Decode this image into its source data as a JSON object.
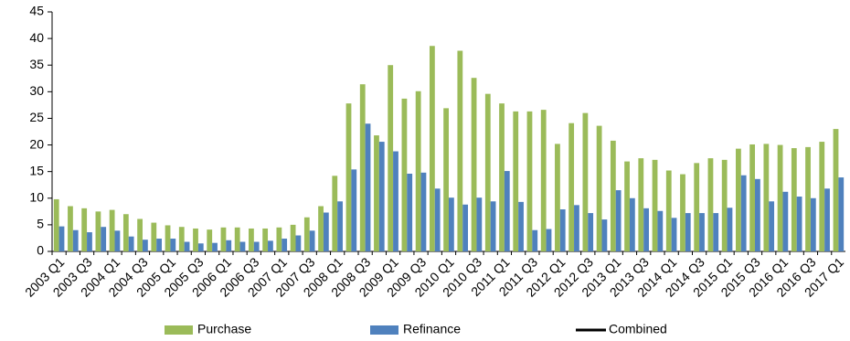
{
  "chart_data": {
    "type": "bar",
    "categories": [
      "2003 Q1",
      null,
      "2003 Q3",
      null,
      "2004 Q1",
      null,
      "2004 Q3",
      null,
      "2005 Q1",
      null,
      "2005 Q3",
      null,
      "2006 Q1",
      null,
      "2006 Q3",
      null,
      "2007 Q1",
      null,
      "2007 Q3",
      null,
      "2008 Q1",
      null,
      "2008 Q3",
      null,
      "2009 Q1",
      null,
      "2009 Q3",
      null,
      "2010 Q1",
      null,
      "2010 Q3",
      null,
      "2011 Q1",
      null,
      "2011 Q3",
      null,
      "2012 Q1",
      null,
      "2012 Q3",
      null,
      "2013 Q1",
      null,
      "2013 Q3",
      null,
      "2014 Q1",
      null,
      "2014 Q3",
      null,
      "2015 Q1",
      null,
      "2015 Q3",
      null,
      "2016 Q1",
      null,
      "2016 Q3",
      null,
      "2017 Q1"
    ],
    "series": [
      {
        "name": "Purchase",
        "color": "#9bbb59",
        "values": [
          9.8,
          8.5,
          8.1,
          7.5,
          7.8,
          7.0,
          6.1,
          5.4,
          4.9,
          4.6,
          4.3,
          4.1,
          4.5,
          4.5,
          4.3,
          4.3,
          4.5,
          5.0,
          6.4,
          8.5,
          14.2,
          27.8,
          31.4,
          21.8,
          35.0,
          28.7,
          30.1,
          38.6,
          26.9,
          37.7,
          32.6,
          29.6,
          27.8,
          26.3,
          26.3,
          26.6,
          20.2,
          24.1,
          26.0,
          23.6,
          20.8,
          16.9,
          17.5,
          17.2,
          15.2,
          14.5,
          16.6,
          17.5,
          17.2,
          19.3,
          20.1,
          20.2,
          20.0,
          19.4,
          19.6,
          20.6,
          23.0
        ]
      },
      {
        "name": "Refinance",
        "color": "#4f81bd",
        "values": [
          4.7,
          4.0,
          3.6,
          4.6,
          3.9,
          2.8,
          2.2,
          2.4,
          2.4,
          1.8,
          1.5,
          1.6,
          2.1,
          1.8,
          1.8,
          2.0,
          2.4,
          3.0,
          3.9,
          7.3,
          9.4,
          15.4,
          24.0,
          20.6,
          18.8,
          14.6,
          14.8,
          11.8,
          10.1,
          8.8,
          10.1,
          9.4,
          15.1,
          9.3,
          4.0,
          4.2,
          7.9,
          8.7,
          7.2,
          6.0,
          11.5,
          10.0,
          8.1,
          7.6,
          6.3,
          7.2,
          7.2,
          7.2,
          8.2,
          14.3,
          13.6,
          9.4,
          11.2,
          10.3,
          10.0,
          11.8,
          13.9
        ]
      },
      {
        "name": "Combined",
        "type": "line",
        "color": "#000000",
        "values": [
          null,
          null,
          null,
          null,
          null,
          null,
          null,
          null,
          null,
          null,
          null,
          null,
          null,
          null,
          null,
          null,
          null,
          null,
          null,
          null,
          null,
          null,
          null,
          null,
          null,
          null,
          null,
          null,
          null,
          null,
          null,
          null,
          null,
          null,
          null,
          null,
          null,
          null,
          null,
          null,
          null,
          null,
          null,
          null,
          null,
          null,
          null,
          null,
          null,
          null,
          null,
          null,
          null,
          null,
          null,
          null,
          null
        ]
      }
    ],
    "ylim": [
      0,
      45
    ],
    "yticks": [
      0,
      5,
      10,
      15,
      20,
      25,
      30,
      35,
      40,
      45
    ],
    "grid": false,
    "legend": "bottom"
  }
}
